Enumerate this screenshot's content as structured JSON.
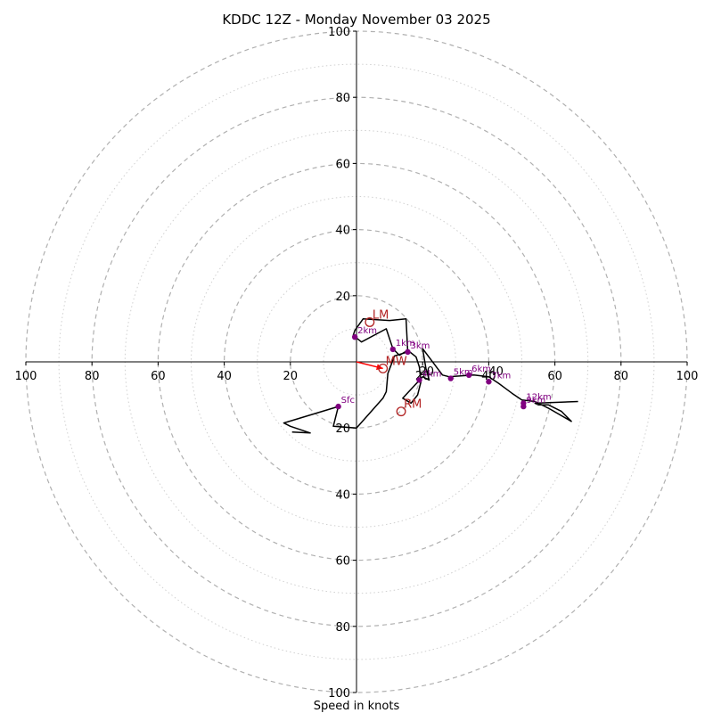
{
  "chart_data": {
    "type": "hodograph",
    "title": "KDDC 12Z - Monday November 03 2025",
    "xlabel": "Speed in knots",
    "axis_range": [
      -100,
      100
    ],
    "major_ring_step": 20,
    "minor_ring_step": 10,
    "ticks": {
      "x": [
        -100,
        -80,
        -60,
        -40,
        -20,
        20,
        40,
        60,
        80,
        100
      ],
      "y": [
        100,
        80,
        60,
        40,
        20,
        -20,
        -40,
        -60,
        -80,
        -100
      ],
      "x_labels": [
        "100",
        "80",
        "60",
        "40",
        "20",
        "20",
        "40",
        "60",
        "80",
        "100"
      ],
      "y_labels": [
        "100",
        "80",
        "60",
        "40",
        "20",
        "20",
        "40",
        "60",
        "80",
        "100"
      ]
    },
    "ring_labels": [
      {
        "text": "20",
        "u": 19,
        "v": -4
      },
      {
        "text": "40",
        "u": 40,
        "v": -4
      }
    ],
    "trace": [
      [
        -19.5,
        -21.2
      ],
      [
        -14,
        -21.5
      ],
      [
        -20,
        -19.5
      ],
      [
        -22,
        -18.5
      ],
      [
        -5.5,
        -13.5
      ],
      [
        -7,
        -19.5
      ],
      [
        0,
        -20
      ],
      [
        8,
        -11
      ],
      [
        9,
        -9
      ],
      [
        9.5,
        -3.5
      ],
      [
        11.5,
        1.8
      ],
      [
        15.5,
        3
      ],
      [
        15,
        13
      ],
      [
        10,
        12.5
      ],
      [
        2,
        13
      ],
      [
        -0.5,
        9.5
      ],
      [
        -1,
        8
      ],
      [
        1.5,
        6
      ],
      [
        9,
        10
      ],
      [
        11,
        4
      ],
      [
        13,
        2
      ],
      [
        15.5,
        3.5
      ],
      [
        18,
        1.5
      ],
      [
        19,
        -1.5
      ],
      [
        19.5,
        -6
      ],
      [
        18.5,
        -10
      ],
      [
        16.5,
        -12.5
      ],
      [
        14,
        -11
      ],
      [
        20,
        -4.5
      ],
      [
        22,
        -5.5
      ],
      [
        21,
        -2
      ],
      [
        20,
        4
      ],
      [
        26,
        -4
      ],
      [
        28,
        -4.5
      ],
      [
        35.5,
        -4
      ],
      [
        40,
        -4.5
      ],
      [
        43,
        -6.5
      ],
      [
        45,
        -8
      ],
      [
        47,
        -9.5
      ],
      [
        50,
        -11.5
      ],
      [
        54,
        -12
      ],
      [
        58,
        -14
      ],
      [
        65,
        -18
      ],
      [
        62,
        -15
      ],
      [
        58,
        -13
      ],
      [
        55,
        -13
      ],
      [
        54,
        -12.5
      ],
      [
        67,
        -12
      ]
    ],
    "height_markers": [
      {
        "label": "Sfc",
        "u": -5.5,
        "v": -13.5
      },
      {
        "label": "1km",
        "u": 11,
        "v": 3.8
      },
      {
        "label": "2km",
        "u": -0.5,
        "v": 7.5
      },
      {
        "label": "3km",
        "u": 15.5,
        "v": 3
      },
      {
        "label": "4km",
        "u": 19,
        "v": -5.5
      },
      {
        "label": "5km",
        "u": 28.5,
        "v": -5
      },
      {
        "label": "6km",
        "u": 34,
        "v": -4
      },
      {
        "label": "7km",
        "u": 40,
        "v": -6
      },
      {
        "label": "9km",
        "u": 50.5,
        "v": -13.5
      },
      {
        "label": "12km",
        "u": 50.5,
        "v": -12.5
      }
    ],
    "storm_motion": [
      {
        "label": "LM",
        "u": 4,
        "v": 12
      },
      {
        "label": "RM",
        "u": 13.5,
        "v": -15
      },
      {
        "label": "MW",
        "u": 8,
        "v": -2
      }
    ],
    "mean_wind_arrow": {
      "from": [
        0,
        0
      ],
      "to": [
        8,
        -2
      ]
    },
    "colors": {
      "trace": "#000000",
      "marker": "#800080",
      "storm": "#b22222",
      "arrow": "#ff0000",
      "major_ring": "#b0b0b0",
      "minor_ring": "#d0d0d0"
    }
  }
}
